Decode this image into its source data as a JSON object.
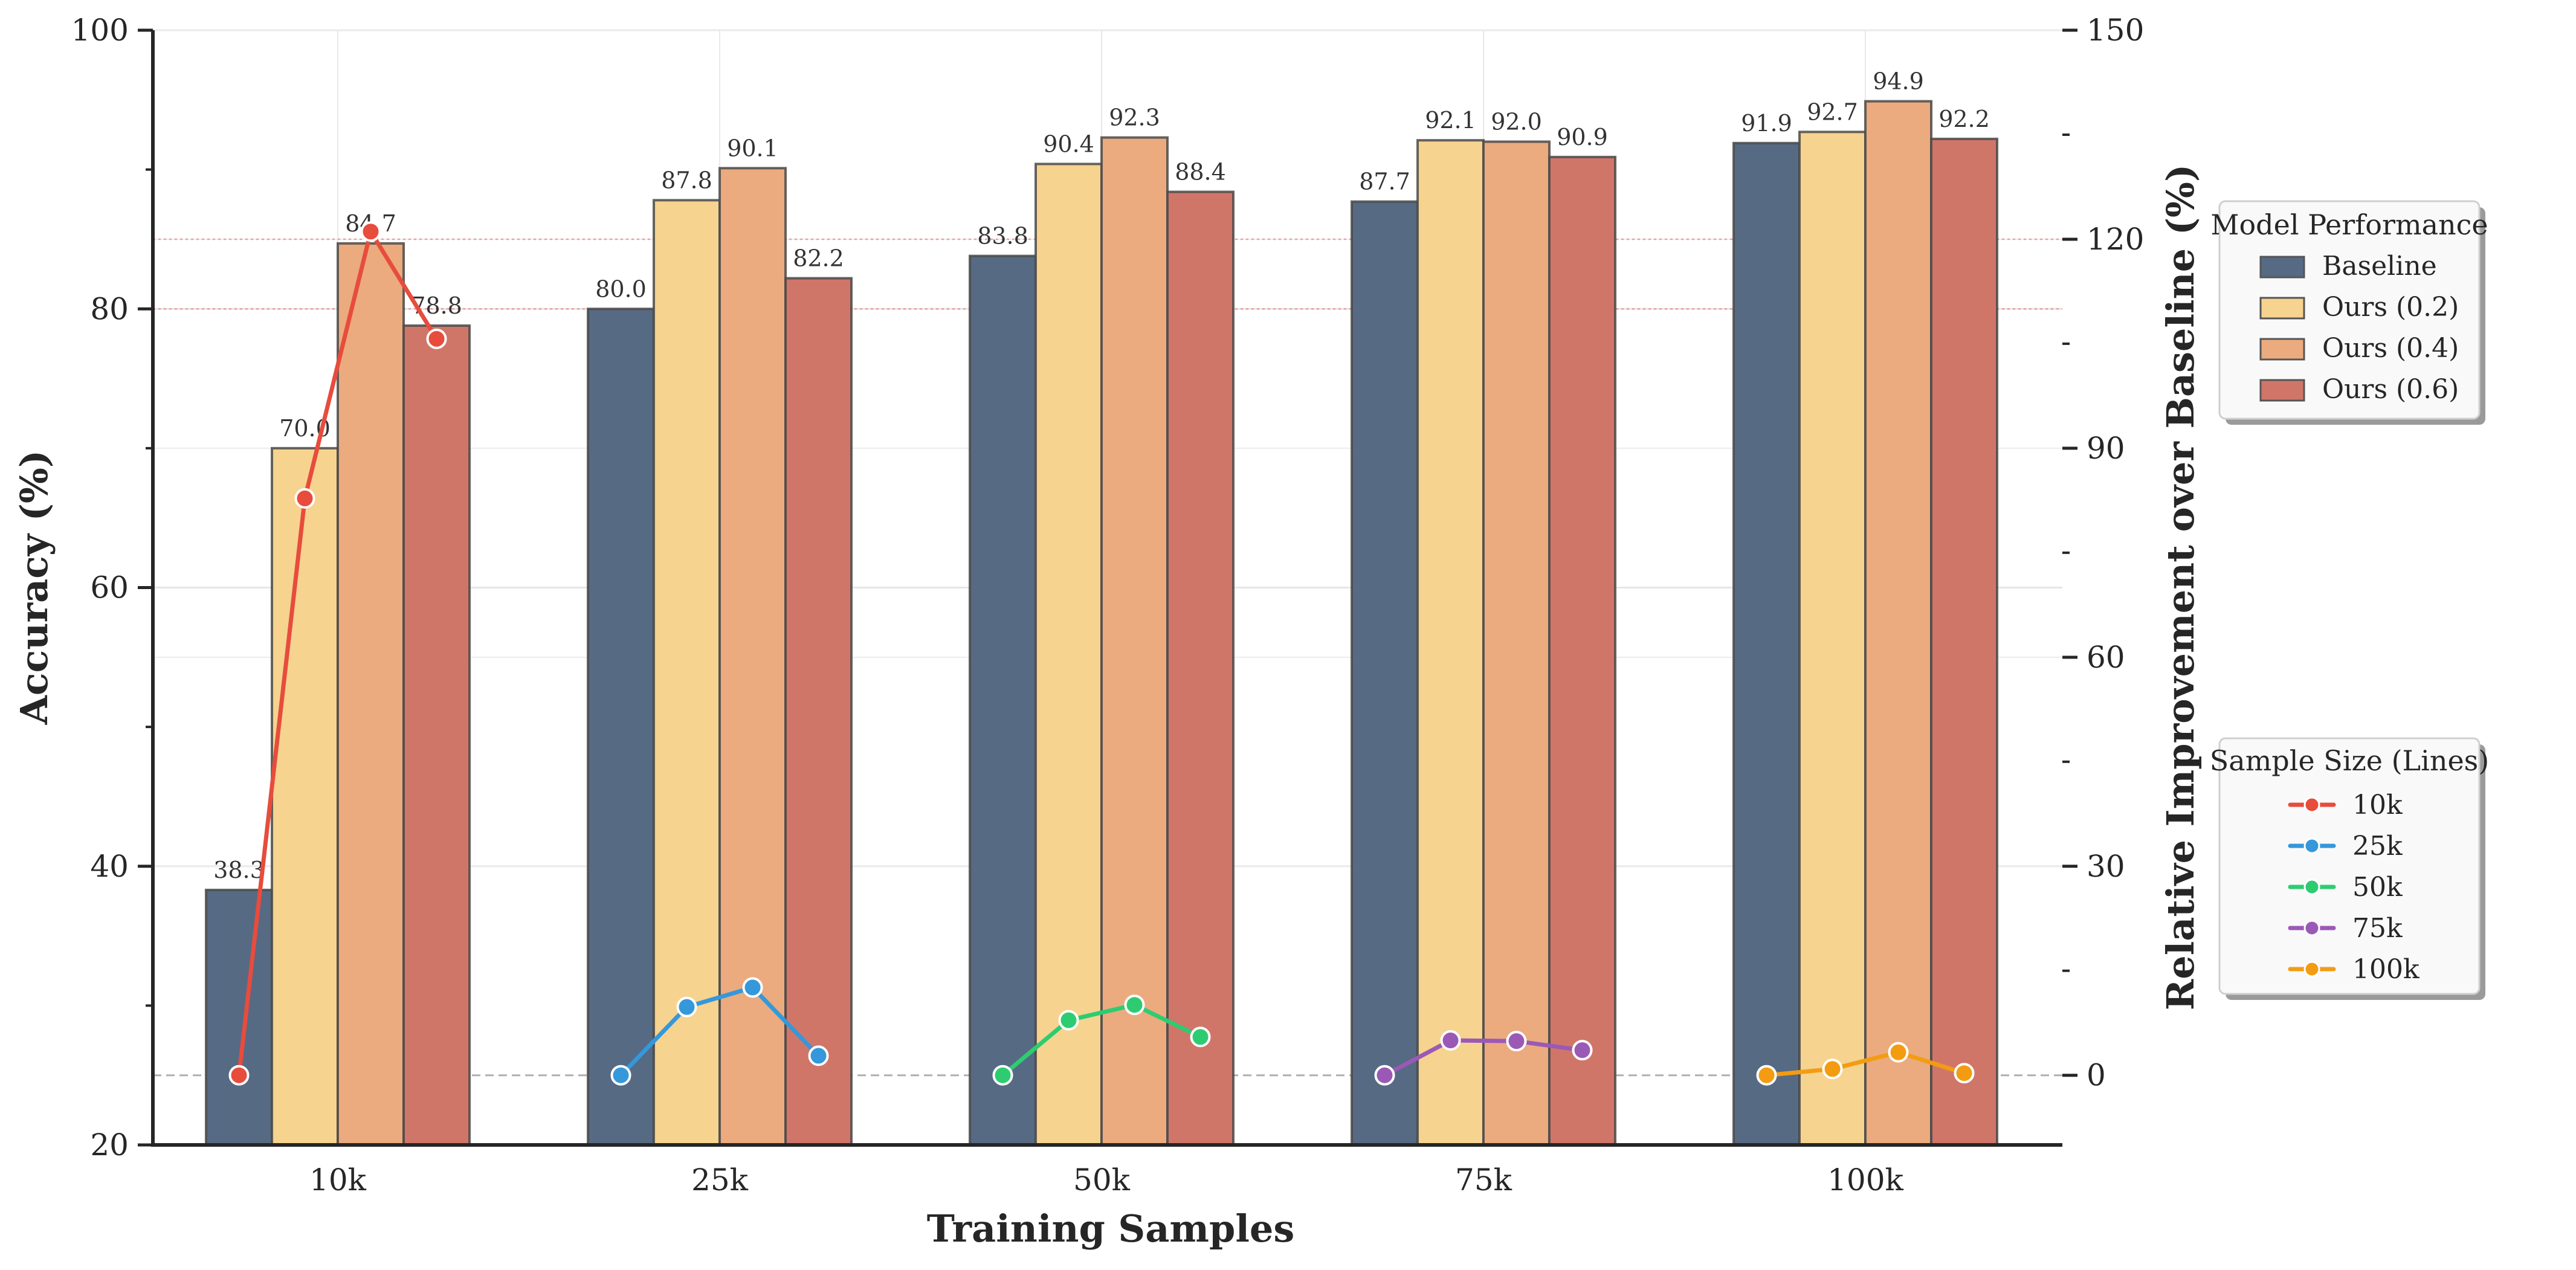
{
  "chart_data": {
    "type": "bar",
    "title": "",
    "xlabel": "Training Samples",
    "ylabel": "Accuracy (%)",
    "y2label": "Relative Improvement over Baseline (%)",
    "categories": [
      "10k",
      "25k",
      "50k",
      "75k",
      "100k"
    ],
    "ylim": [
      20,
      100
    ],
    "y2lim": [
      -10,
      150
    ],
    "yticks": [
      20,
      40,
      60,
      80,
      100
    ],
    "y2ticks": [
      0,
      30,
      60,
      90,
      120,
      150
    ],
    "grid": true,
    "series": [
      {
        "name": "Baseline",
        "color": "#566a84",
        "values": [
          38.3,
          80.0,
          83.8,
          87.7,
          91.9
        ]
      },
      {
        "name": "Ours (0.2)",
        "color": "#f6d38f",
        "values": [
          70.0,
          87.8,
          90.4,
          92.1,
          92.7
        ]
      },
      {
        "name": "Ours (0.4)",
        "color": "#ebab7e",
        "values": [
          84.7,
          90.1,
          92.3,
          92.0,
          94.9
        ]
      },
      {
        "name": "Ours (0.6)",
        "color": "#d07669",
        "values": [
          78.8,
          82.2,
          88.4,
          90.9,
          92.2
        ]
      }
    ],
    "lines": [
      {
        "name": "10k",
        "color": "#e74c3c",
        "values": [
          0,
          82.8,
          121.1,
          105.7
        ]
      },
      {
        "name": "25k",
        "color": "#3498db",
        "values": [
          0,
          9.8,
          12.6,
          2.8
        ]
      },
      {
        "name": "50k",
        "color": "#2ecc71",
        "values": [
          0,
          7.9,
          10.1,
          5.5
        ]
      },
      {
        "name": "75k",
        "color": "#9b59b6",
        "values": [
          0,
          5.0,
          4.9,
          3.6
        ]
      },
      {
        "name": "100k",
        "color": "#f39c12",
        "values": [
          0,
          0.9,
          3.3,
          0.3
        ]
      }
    ],
    "reference_lines_y2": [
      120,
      110
    ],
    "zero_line_y2": 0,
    "legends": [
      {
        "title": "Model Performance",
        "placement": "right-upper",
        "entries": [
          "Baseline",
          "Ours (0.2)",
          "Ours (0.4)",
          "Ours (0.6)"
        ]
      },
      {
        "title": "Sample Size (Lines)",
        "placement": "right-lower",
        "entries": [
          "10k",
          "25k",
          "50k",
          "75k",
          "100k"
        ]
      }
    ]
  }
}
